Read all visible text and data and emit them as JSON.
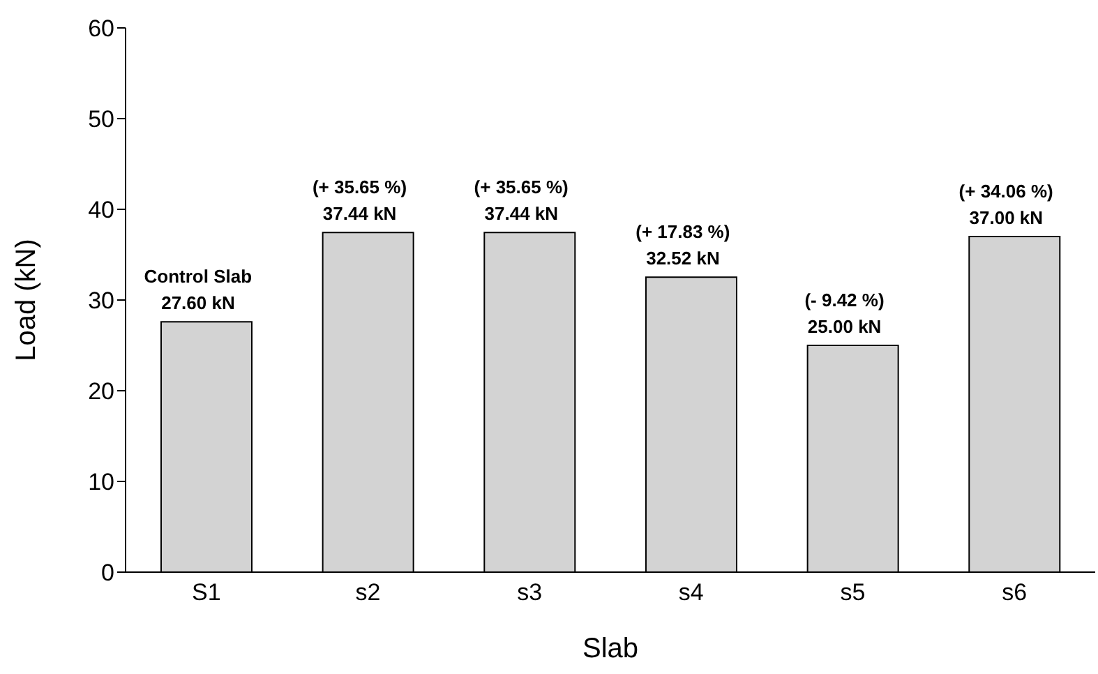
{
  "chart_data": {
    "type": "bar",
    "xlabel": "Slab",
    "ylabel": "Load (kN)",
    "categories": [
      "S1",
      "s2",
      "s3",
      "s4",
      "s5",
      "s6"
    ],
    "values": [
      27.6,
      37.44,
      37.44,
      32.52,
      25.0,
      37.0
    ],
    "color": "#d3d3d3",
    "value_labels": [
      "27.60 kN",
      "37.44 kN",
      "37.44 kN",
      "32.52 kN",
      "25.00 kN",
      "37.00 kN"
    ],
    "annotations": [
      {
        "text": "Control Slab",
        "x": "S1",
        "y": 27.6
      },
      {
        "text": "(+ 35.65 %)",
        "x": "s2",
        "y": 37.44
      },
      {
        "text": "(+ 35.65 %)",
        "x": "s3",
        "y": 37.44
      },
      {
        "text": "(+ 17.83 %)",
        "x": "s4",
        "y": 32.52
      },
      {
        "text": "(- 9.42 %)",
        "x": "s5",
        "y": 25.0
      },
      {
        "text": "(+ 34.06 %)",
        "x": "s6",
        "y": 37.0
      }
    ],
    "ylim": [
      0,
      60
    ],
    "yticks": [
      0,
      10,
      20,
      30,
      40,
      50,
      60
    ],
    "grid": false,
    "legend": false
  }
}
